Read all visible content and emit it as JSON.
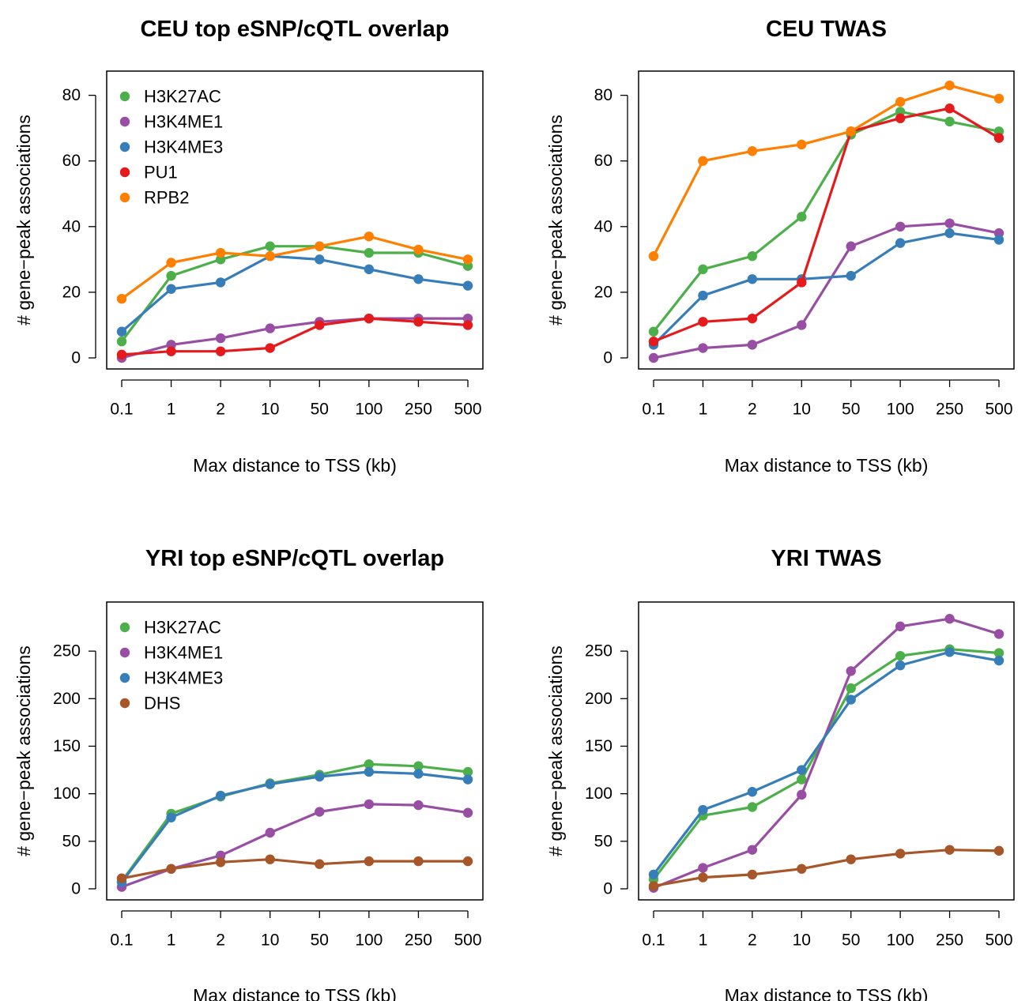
{
  "colors": {
    "H3K27AC": "#4daf4a",
    "H3K4ME1": "#984ea3",
    "H3K4ME3": "#377eb8",
    "PU1": "#e41a1c",
    "RPB2": "#ff7f00",
    "DHS": "#a65628"
  },
  "chart_data": [
    {
      "type": "line",
      "title": "CEU top eSNP/cQTL overlap",
      "xlabel": "Max distance to TSS (kb)",
      "ylabel": "# gene−peak associations",
      "categories": [
        "0.1",
        "1",
        "2",
        "10",
        "50",
        "100",
        "250",
        "500"
      ],
      "ylim": [
        0,
        84
      ],
      "yticks": [
        "0",
        "20",
        "40",
        "60",
        "80"
      ],
      "grid": false,
      "legend": "top-left",
      "series": [
        {
          "name": "H3K27AC",
          "values": [
            5,
            25,
            30,
            34,
            34,
            32,
            32,
            28
          ]
        },
        {
          "name": "H3K4ME1",
          "values": [
            0,
            4,
            6,
            9,
            11,
            12,
            12,
            12
          ]
        },
        {
          "name": "H3K4ME3",
          "values": [
            8,
            21,
            23,
            31,
            30,
            27,
            24,
            22
          ]
        },
        {
          "name": "PU1",
          "values": [
            1,
            2,
            2,
            3,
            10,
            12,
            11,
            10
          ]
        },
        {
          "name": "RPB2",
          "values": [
            18,
            29,
            32,
            31,
            34,
            37,
            33,
            30
          ]
        }
      ]
    },
    {
      "type": "line",
      "title": "CEU TWAS",
      "xlabel": "Max distance to TSS (kb)",
      "ylabel": "# gene−peak associations",
      "categories": [
        "0.1",
        "1",
        "2",
        "10",
        "50",
        "100",
        "250",
        "500"
      ],
      "ylim": [
        0,
        84
      ],
      "yticks": [
        "0",
        "20",
        "40",
        "60",
        "80"
      ],
      "grid": false,
      "series": [
        {
          "name": "H3K27AC",
          "values": [
            8,
            27,
            31,
            43,
            68,
            75,
            72,
            69
          ]
        },
        {
          "name": "H3K4ME1",
          "values": [
            0,
            3,
            4,
            10,
            34,
            40,
            41,
            38
          ]
        },
        {
          "name": "H3K4ME3",
          "values": [
            4,
            19,
            24,
            24,
            25,
            35,
            38,
            36
          ]
        },
        {
          "name": "PU1",
          "values": [
            5,
            11,
            12,
            23,
            69,
            73,
            76,
            67
          ]
        },
        {
          "name": "RPB2",
          "values": [
            31,
            60,
            63,
            65,
            69,
            78,
            83,
            79
          ]
        }
      ]
    },
    {
      "type": "line",
      "title": "YRI top eSNP/cQTL overlap",
      "xlabel": "Max distance to TSS (kb)",
      "ylabel": "# gene−peak associations",
      "categories": [
        "0.1",
        "1",
        "2",
        "10",
        "50",
        "100",
        "250",
        "500"
      ],
      "ylim": [
        0,
        290
      ],
      "yticks": [
        "0",
        "50",
        "100",
        "150",
        "200",
        "250"
      ],
      "grid": false,
      "legend": "top-left",
      "series": [
        {
          "name": "H3K27AC",
          "values": [
            8,
            79,
            97,
            111,
            120,
            131,
            129,
            123
          ]
        },
        {
          "name": "H3K4ME1",
          "values": [
            2,
            21,
            35,
            59,
            81,
            89,
            88,
            80
          ]
        },
        {
          "name": "H3K4ME3",
          "values": [
            7,
            75,
            98,
            110,
            118,
            123,
            121,
            115
          ]
        },
        {
          "name": "DHS",
          "values": [
            11,
            21,
            28,
            31,
            26,
            29,
            29,
            29
          ]
        }
      ]
    },
    {
      "type": "line",
      "title": "YRI TWAS",
      "xlabel": "Max distance to TSS (kb)",
      "ylabel": "# gene−peak associations",
      "categories": [
        "0.1",
        "1",
        "2",
        "10",
        "50",
        "100",
        "250",
        "500"
      ],
      "ylim": [
        0,
        290
      ],
      "yticks": [
        "0",
        "50",
        "100",
        "150",
        "200",
        "250"
      ],
      "grid": false,
      "series": [
        {
          "name": "H3K27AC",
          "values": [
            10,
            77,
            86,
            115,
            211,
            245,
            252,
            248
          ]
        },
        {
          "name": "H3K4ME1",
          "values": [
            1,
            22,
            41,
            99,
            229,
            276,
            284,
            268
          ]
        },
        {
          "name": "H3K4ME3",
          "values": [
            15,
            83,
            102,
            125,
            199,
            235,
            249,
            240
          ]
        },
        {
          "name": "DHS",
          "values": [
            3,
            12,
            15,
            21,
            31,
            37,
            41,
            40
          ]
        }
      ]
    }
  ]
}
